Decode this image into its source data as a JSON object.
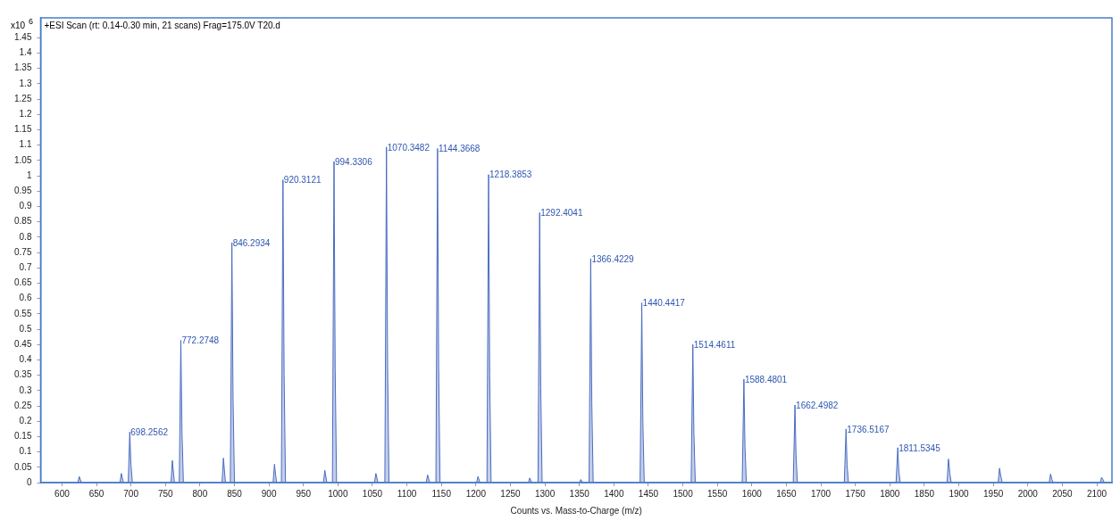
{
  "chart_data": {
    "type": "area",
    "title": "+ESI Scan (rt: 0.14-0.30 min, 21 scans) Frag=175.0V T20.d",
    "xlabel": "Counts vs. Mass-to-Charge (m/z)",
    "ylabel": "x10$^{6}$",
    "xlim": [
      569,
      2122
    ],
    "ylim": [
      0,
      1.515
    ],
    "xticks": [
      600,
      650,
      700,
      750,
      800,
      850,
      900,
      950,
      1000,
      1050,
      1100,
      1150,
      1200,
      1250,
      1300,
      1350,
      1400,
      1450,
      1500,
      1550,
      1600,
      1650,
      1700,
      1750,
      1800,
      1850,
      1900,
      1950,
      2000,
      2050,
      2100
    ],
    "yticks": [
      0,
      0.05,
      0.1,
      0.15,
      0.2,
      0.25,
      0.3,
      0.35,
      0.4,
      0.45,
      0.5,
      0.55,
      0.6,
      0.65,
      0.7,
      0.75,
      0.8,
      0.85,
      0.9,
      0.95,
      1,
      1.05,
      1.1,
      1.15,
      1.2,
      1.25,
      1.3,
      1.35,
      1.4,
      1.45
    ],
    "grid": false,
    "legend": false,
    "series": [
      {
        "color": "#4a6cc0",
        "x": [
          569,
          623,
          625,
          628,
          684,
          686,
          689,
          696,
          698.2562,
          700,
          702,
          758,
          760,
          763,
          770,
          772.2748,
          774,
          776,
          832,
          834,
          837,
          844,
          846.2934,
          848,
          850,
          906,
          908,
          911,
          918,
          920.3121,
          922,
          924,
          979,
          981,
          984,
          992,
          994.3306,
          996,
          998,
          1053,
          1055,
          1058,
          1068,
          1070.3482,
          1072,
          1074,
          1128,
          1130,
          1133,
          1142,
          1144.3668,
          1146,
          1148,
          1201,
          1203,
          1206,
          1216,
          1218.3853,
          1220,
          1222,
          1276,
          1278,
          1281,
          1290,
          1292.4041,
          1294,
          1296,
          1350,
          1352,
          1355,
          1364,
          1366.4229,
          1368,
          1370,
          1438,
          1440.4417,
          1442,
          1444,
          1512,
          1514.4611,
          1516,
          1518,
          1586,
          1588.4801,
          1590,
          1592,
          1660,
          1662.4982,
          1664,
          1666,
          1734,
          1736.5167,
          1738,
          1740,
          1809,
          1811.5345,
          1813,
          1815,
          1883,
          1885,
          1887,
          1889,
          1957,
          1959,
          1961,
          1963,
          2031,
          2033,
          2035,
          2037,
          2105,
          2107,
          2109,
          2111,
          2122
        ],
        "values": [
          0,
          0,
          0.02,
          0,
          0,
          0.03,
          0,
          0,
          0.165,
          0.058,
          0,
          0,
          0.072,
          0,
          0,
          0.464,
          0.16,
          0,
          0,
          0.08,
          0,
          0,
          0.782,
          0.27,
          0,
          0,
          0.06,
          0,
          0,
          0.987,
          0.35,
          0,
          0,
          0.04,
          0,
          0,
          1.047,
          0.37,
          0,
          0,
          0.03,
          0,
          0,
          1.094,
          0.38,
          0,
          0,
          0.025,
          0,
          0,
          1.089,
          0.38,
          0,
          0,
          0.02,
          0,
          0,
          1.004,
          0.35,
          0,
          0,
          0.015,
          0,
          0,
          0.88,
          0.31,
          0,
          0,
          0.01,
          0,
          0,
          0.73,
          0.26,
          0,
          0,
          0.586,
          0.2,
          0,
          0,
          0.45,
          0.16,
          0,
          0,
          0.337,
          0.12,
          0,
          0,
          0.253,
          0.09,
          0,
          0,
          0.175,
          0.06,
          0,
          0,
          0.114,
          0.04,
          0,
          0,
          0.077,
          0.03,
          0,
          0,
          0.047,
          0.02,
          0,
          0,
          0.028,
          0.01,
          0,
          0,
          0.017,
          0.01,
          0,
          0
        ]
      }
    ],
    "annotations": [
      {
        "text": "698.2562",
        "x": 698.2562,
        "y": 0.165
      },
      {
        "text": "772.2748",
        "x": 772.2748,
        "y": 0.464
      },
      {
        "text": "846.2934",
        "x": 846.2934,
        "y": 0.782
      },
      {
        "text": "920.3121",
        "x": 920.3121,
        "y": 0.987
      },
      {
        "text": "994.3306",
        "x": 994.3306,
        "y": 1.047
      },
      {
        "text": "1070.3482",
        "x": 1070.3482,
        "y": 1.094
      },
      {
        "text": "1144.3668",
        "x": 1144.3668,
        "y": 1.089
      },
      {
        "text": "1218.3853",
        "x": 1218.3853,
        "y": 1.004
      },
      {
        "text": "1292.4041",
        "x": 1292.4041,
        "y": 0.88
      },
      {
        "text": "1366.4229",
        "x": 1366.4229,
        "y": 0.73
      },
      {
        "text": "1440.4417",
        "x": 1440.4417,
        "y": 0.586
      },
      {
        "text": "1514.4611",
        "x": 1514.4611,
        "y": 0.45
      },
      {
        "text": "1588.4801",
        "x": 1588.4801,
        "y": 0.337
      },
      {
        "text": "1662.4982",
        "x": 1662.4982,
        "y": 0.253
      },
      {
        "text": "1736.5167",
        "x": 1736.5167,
        "y": 0.175
      },
      {
        "text": "1811.5345",
        "x": 1811.5345,
        "y": 0.114
      }
    ]
  }
}
